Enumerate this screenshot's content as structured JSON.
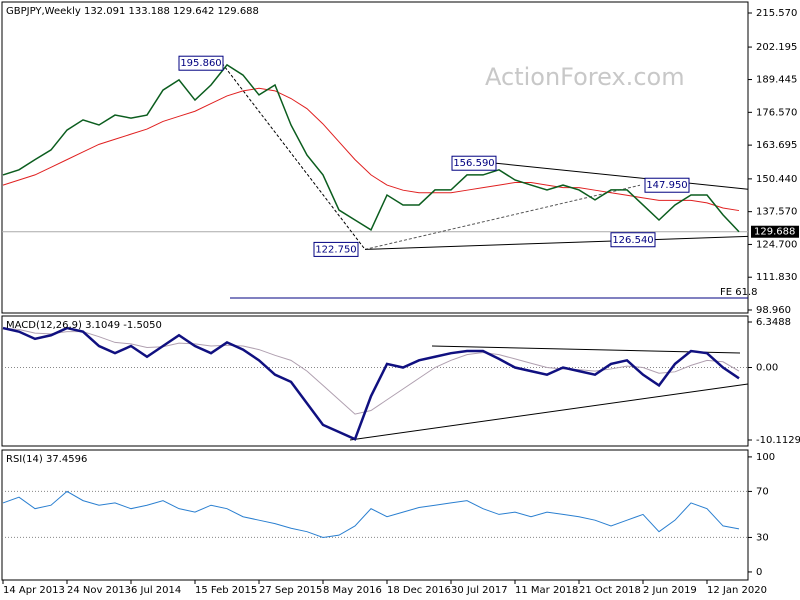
{
  "chart_data": [
    {
      "type": "line",
      "title": "GBPJPY,Weekly  132.091 133.188 129.642 129.688",
      "watermark": "ActionForex.com",
      "ylim": [
        97.78,
        219.89
      ],
      "yticks": [
        {
          "value": 215.57,
          "label": "215.570"
        },
        {
          "value": 202.195,
          "label": "202.195"
        },
        {
          "value": 189.445,
          "label": "189.445"
        },
        {
          "value": 176.57,
          "label": "176.570"
        },
        {
          "value": 163.695,
          "label": "163.695"
        },
        {
          "value": 150.44,
          "label": "150.440"
        },
        {
          "value": 137.57,
          "label": "137.570"
        },
        {
          "value": 124.7,
          "label": "124.700"
        },
        {
          "value": 111.83,
          "label": "111.830"
        },
        {
          "value": 98.96,
          "label": "98.960"
        }
      ],
      "grid": false,
      "series": [
        {
          "color": "#0b5d1e",
          "values": [
            152,
            154,
            158,
            161.8,
            169.6,
            173.6,
            171.6,
            175.5,
            174.3,
            175.5,
            185.3,
            189.3,
            181.4,
            187.3,
            195.2,
            191.2,
            183.4,
            187.3,
            171.6,
            159.8,
            152,
            138.2,
            134.3,
            130.4,
            144.1,
            140.2,
            140.2,
            146.1,
            146.1,
            152,
            152,
            154,
            150,
            148,
            146.1,
            148,
            146.1,
            142.2,
            146.1,
            146.1,
            140.2,
            134.3,
            140.2,
            144.1,
            144.1,
            136.3,
            129.688
          ]
        },
        {
          "color": "#e02020",
          "values": [
            148,
            150,
            152,
            155,
            158,
            161,
            164,
            166,
            168,
            170,
            173,
            175,
            177,
            180,
            183,
            185,
            186,
            185,
            182,
            178,
            172,
            165,
            158,
            152,
            148,
            146,
            145,
            145,
            145,
            146,
            147,
            148,
            149,
            149,
            148,
            147,
            147,
            146,
            145,
            144,
            143,
            142,
            142,
            142,
            141,
            139,
            138
          ]
        }
      ],
      "annotations": [
        {
          "text": "195.860",
          "value": 195.86
        },
        {
          "text": "122.750",
          "value": 122.75
        },
        {
          "text": "156.590",
          "value": 156.59
        },
        {
          "text": "126.540",
          "value": 126.54
        },
        {
          "text": "147.950",
          "value": 147.95
        }
      ],
      "current_price": {
        "value": 129.688,
        "label": "129.688"
      },
      "fe_level": {
        "text": "FE 61.8",
        "value": 103.68
      }
    },
    {
      "type": "line",
      "title": "MACD(12,26,9) 3.1049 -1.5050",
      "ylim": [
        -10.95,
        7.186
      ],
      "yticks": [
        6.3488,
        {
          "value": 0,
          "label": "0.00"
        },
        -10.1129
      ],
      "grid": true,
      "series": [
        {
          "color": "#101080",
          "values": [
            5.5,
            5,
            4,
            4.5,
            5.5,
            5,
            3,
            2,
            3,
            1.5,
            3,
            4.5,
            3,
            2,
            3.5,
            2.5,
            1,
            -1,
            -2,
            -5,
            -8,
            -9,
            -10,
            -4,
            0.5,
            0,
            1,
            1.5,
            2,
            2.3,
            2.3,
            1.2,
            0,
            -0.5,
            -1,
            0,
            -0.5,
            -1,
            0.5,
            1,
            -1,
            -2.5,
            0.5,
            2.3,
            2,
            0,
            -1.505
          ]
        },
        {
          "color": "#b0a0b0",
          "values": [
            5.5,
            5.3,
            4.8,
            4.7,
            5,
            5,
            4.3,
            3.5,
            3.3,
            2.8,
            2.9,
            3.4,
            3.3,
            3,
            3.1,
            3,
            2.5,
            1.7,
            1,
            -0.5,
            -2.5,
            -4.5,
            -6.5,
            -6,
            -4.5,
            -3,
            -1.5,
            0,
            1,
            1.8,
            2.1,
            1.8,
            1.2,
            0.6,
            0,
            -0.2,
            -0.3,
            -0.5,
            -0.2,
            0.2,
            0,
            -0.8,
            -0.6,
            0.3,
            1,
            0.8,
            -0.5
          ]
        }
      ]
    },
    {
      "type": "line",
      "title": "RSI(14) 37.4596",
      "ylim": [
        -7,
        106
      ],
      "yticks": [
        100,
        70,
        30,
        0
      ],
      "grid": true,
      "series": [
        {
          "color": "#2a7fd0",
          "values": [
            60,
            65,
            55,
            58,
            70,
            62,
            58,
            60,
            55,
            58,
            62,
            55,
            52,
            58,
            55,
            48,
            45,
            42,
            38,
            35,
            30,
            32,
            40,
            55,
            48,
            52,
            56,
            58,
            60,
            62,
            55,
            50,
            52,
            48,
            52,
            50,
            48,
            45,
            40,
            45,
            50,
            35,
            45,
            60,
            55,
            40,
            37.4596
          ]
        }
      ],
      "categories": [
        "14 Apr 2013",
        null,
        null,
        null,
        "24 Nov 2013",
        null,
        null,
        null,
        "6 Jul 2014",
        null,
        null,
        null,
        "15 Feb 2015",
        null,
        null,
        null,
        "27 Sep 2015",
        null,
        null,
        null,
        "8 May 2016",
        null,
        null,
        null,
        "18 Dec 2016",
        null,
        null,
        null,
        "30 Jul 2017",
        null,
        null,
        null,
        "11 Mar 2018",
        null,
        null,
        null,
        "21 Oct 2018",
        null,
        null,
        null,
        "2 Jun 2019",
        null,
        null,
        null,
        "12 Jan 2020",
        null,
        null
      ]
    }
  ]
}
